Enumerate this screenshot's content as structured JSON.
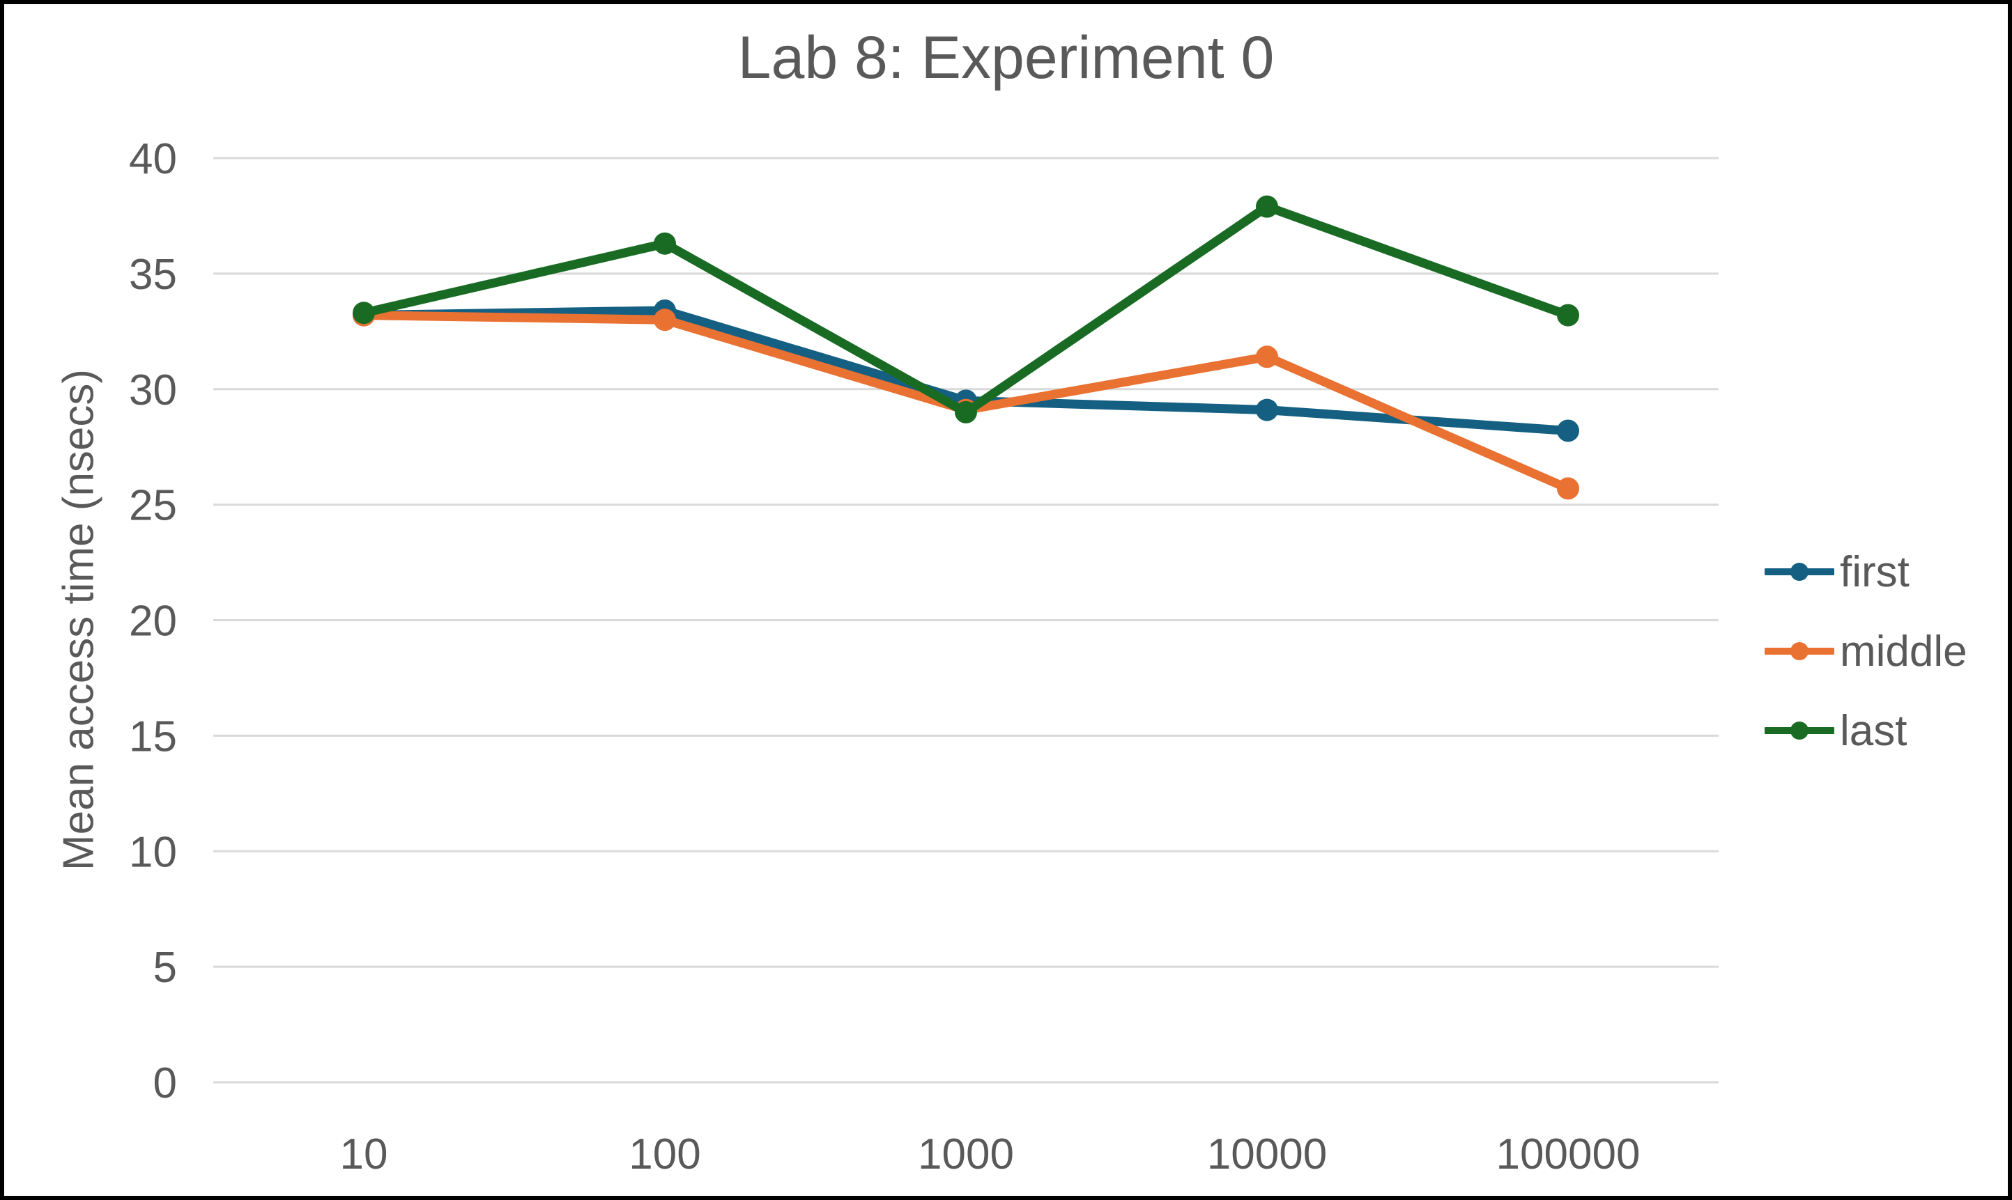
{
  "chart": {
    "title": "Lab 8: Experiment 0",
    "y_axis_title": "Mean access time (nsecs)"
  },
  "chart_data": {
    "type": "line",
    "title": "Lab 8: Experiment 0",
    "xlabel": "",
    "ylabel": "Mean access time (nsecs)",
    "categories": [
      "10",
      "100",
      "1000",
      "10000",
      "100000"
    ],
    "series": [
      {
        "name": "first",
        "color": "#156082",
        "values": [
          33.2,
          33.4,
          29.5,
          29.1,
          28.2
        ]
      },
      {
        "name": "middle",
        "color": "#E97132",
        "values": [
          33.2,
          33.0,
          29.1,
          31.4,
          25.7
        ]
      },
      {
        "name": "last",
        "color": "#196B24",
        "values": [
          33.3,
          36.3,
          29.0,
          37.9,
          33.2
        ]
      }
    ],
    "ylim": [
      0,
      40
    ],
    "ytick_step": 5,
    "ytick_labels": [
      "0",
      "5",
      "10",
      "15",
      "20",
      "25",
      "30",
      "35",
      "40"
    ],
    "grid": true,
    "gridline_color": "#D9D9D9",
    "text_color": "#595959",
    "frame_border_color": "#000000",
    "legend_position": "right",
    "legend_labels": [
      "first",
      "middle",
      "last"
    ],
    "marker": "circle"
  }
}
